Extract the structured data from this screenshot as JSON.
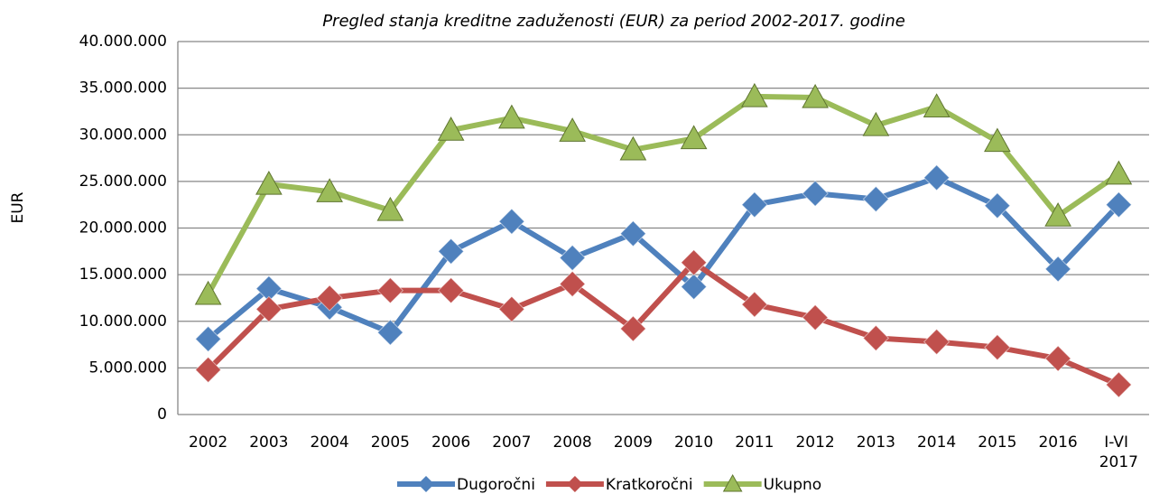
{
  "chart_data": {
    "type": "line",
    "title": "Pregled stanja kreditne zaduženosti (EUR) za period 2002-2017. godine",
    "y_label": "EUR",
    "categories": [
      "2002",
      "2003",
      "2004",
      "2005",
      "2006",
      "2007",
      "2008",
      "2009",
      "2010",
      "2011",
      "2012",
      "2013",
      "2014",
      "2015",
      "2016",
      "I-VI 2017"
    ],
    "series": [
      {
        "name": "Dugoročni",
        "color": "#4f81bd",
        "marker": "diamond",
        "values": [
          8100000,
          13500000,
          11500000,
          8800000,
          17500000,
          20700000,
          16800000,
          19400000,
          13700000,
          22500000,
          23700000,
          23100000,
          25400000,
          22400000,
          15600000,
          22500000
        ]
      },
      {
        "name": "Kratkoročni",
        "color": "#c0504d",
        "marker": "diamond",
        "values": [
          4800000,
          11300000,
          12500000,
          13300000,
          13300000,
          11300000,
          14000000,
          9200000,
          16300000,
          11800000,
          10400000,
          8200000,
          7800000,
          7200000,
          6000000,
          3200000
        ]
      },
      {
        "name": "Ukupno",
        "color": "#9bbb59",
        "marker": "triangle",
        "values": [
          12900000,
          24700000,
          23900000,
          21900000,
          30500000,
          31800000,
          30400000,
          28400000,
          29600000,
          34100000,
          34000000,
          31000000,
          33000000,
          29300000,
          21300000,
          25800000
        ]
      }
    ],
    "ylim": [
      0,
      40000000
    ],
    "yticks": [
      0,
      {
        "value": 5000000,
        "label": "5.000.000"
      },
      {
        "value": 10000000,
        "label": "10.000.000"
      },
      {
        "value": 15000000,
        "label": "15.000.000"
      },
      {
        "value": 20000000,
        "label": "20.000.000"
      },
      {
        "value": 25000000,
        "label": "25.000.000"
      },
      {
        "value": 30000000,
        "label": "30.000.000"
      },
      {
        "value": 35000000,
        "label": "35.000.000"
      },
      {
        "value": 40000000,
        "label": "40.000.000"
      }
    ],
    "grid": true,
    "legend": "bottom"
  }
}
